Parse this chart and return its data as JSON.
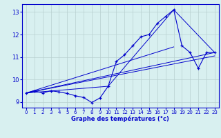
{
  "title": "",
  "xlabel": "Graphe des températures (°c)",
  "ylabel": "",
  "background_color": "#d8f0f0",
  "grid_color": "#b8d0d0",
  "line_color": "#0000cc",
  "xlim": [
    -0.5,
    23.5
  ],
  "ylim": [
    8.75,
    13.35
  ],
  "xticks": [
    0,
    1,
    2,
    3,
    4,
    5,
    6,
    7,
    8,
    9,
    10,
    11,
    12,
    13,
    14,
    15,
    16,
    17,
    18,
    19,
    20,
    21,
    22,
    23
  ],
  "yticks": [
    9,
    10,
    11,
    12,
    13
  ],
  "main_line": {
    "x": [
      0,
      1,
      2,
      3,
      4,
      5,
      6,
      7,
      8,
      9,
      10,
      11,
      12,
      13,
      14,
      15,
      16,
      17,
      18,
      19,
      20,
      21,
      22,
      23
    ],
    "y": [
      9.4,
      9.5,
      9.4,
      9.5,
      9.45,
      9.38,
      9.28,
      9.2,
      8.98,
      9.18,
      9.7,
      10.8,
      11.1,
      11.5,
      11.9,
      12.0,
      12.5,
      12.8,
      13.1,
      11.5,
      11.2,
      10.5,
      11.2,
      11.2
    ]
  },
  "trend_lines": [
    {
      "x": [
        0,
        23
      ],
      "y": [
        9.4,
        11.2
      ]
    },
    {
      "x": [
        0,
        10
      ],
      "y": [
        9.4,
        9.7
      ]
    },
    {
      "x": [
        10,
        18
      ],
      "y": [
        9.7,
        13.1
      ]
    },
    {
      "x": [
        18,
        23
      ],
      "y": [
        13.1,
        11.2
      ]
    },
    {
      "x": [
        0,
        18
      ],
      "y": [
        9.4,
        11.45
      ]
    },
    {
      "x": [
        0,
        23
      ],
      "y": [
        9.4,
        11.05
      ]
    }
  ]
}
